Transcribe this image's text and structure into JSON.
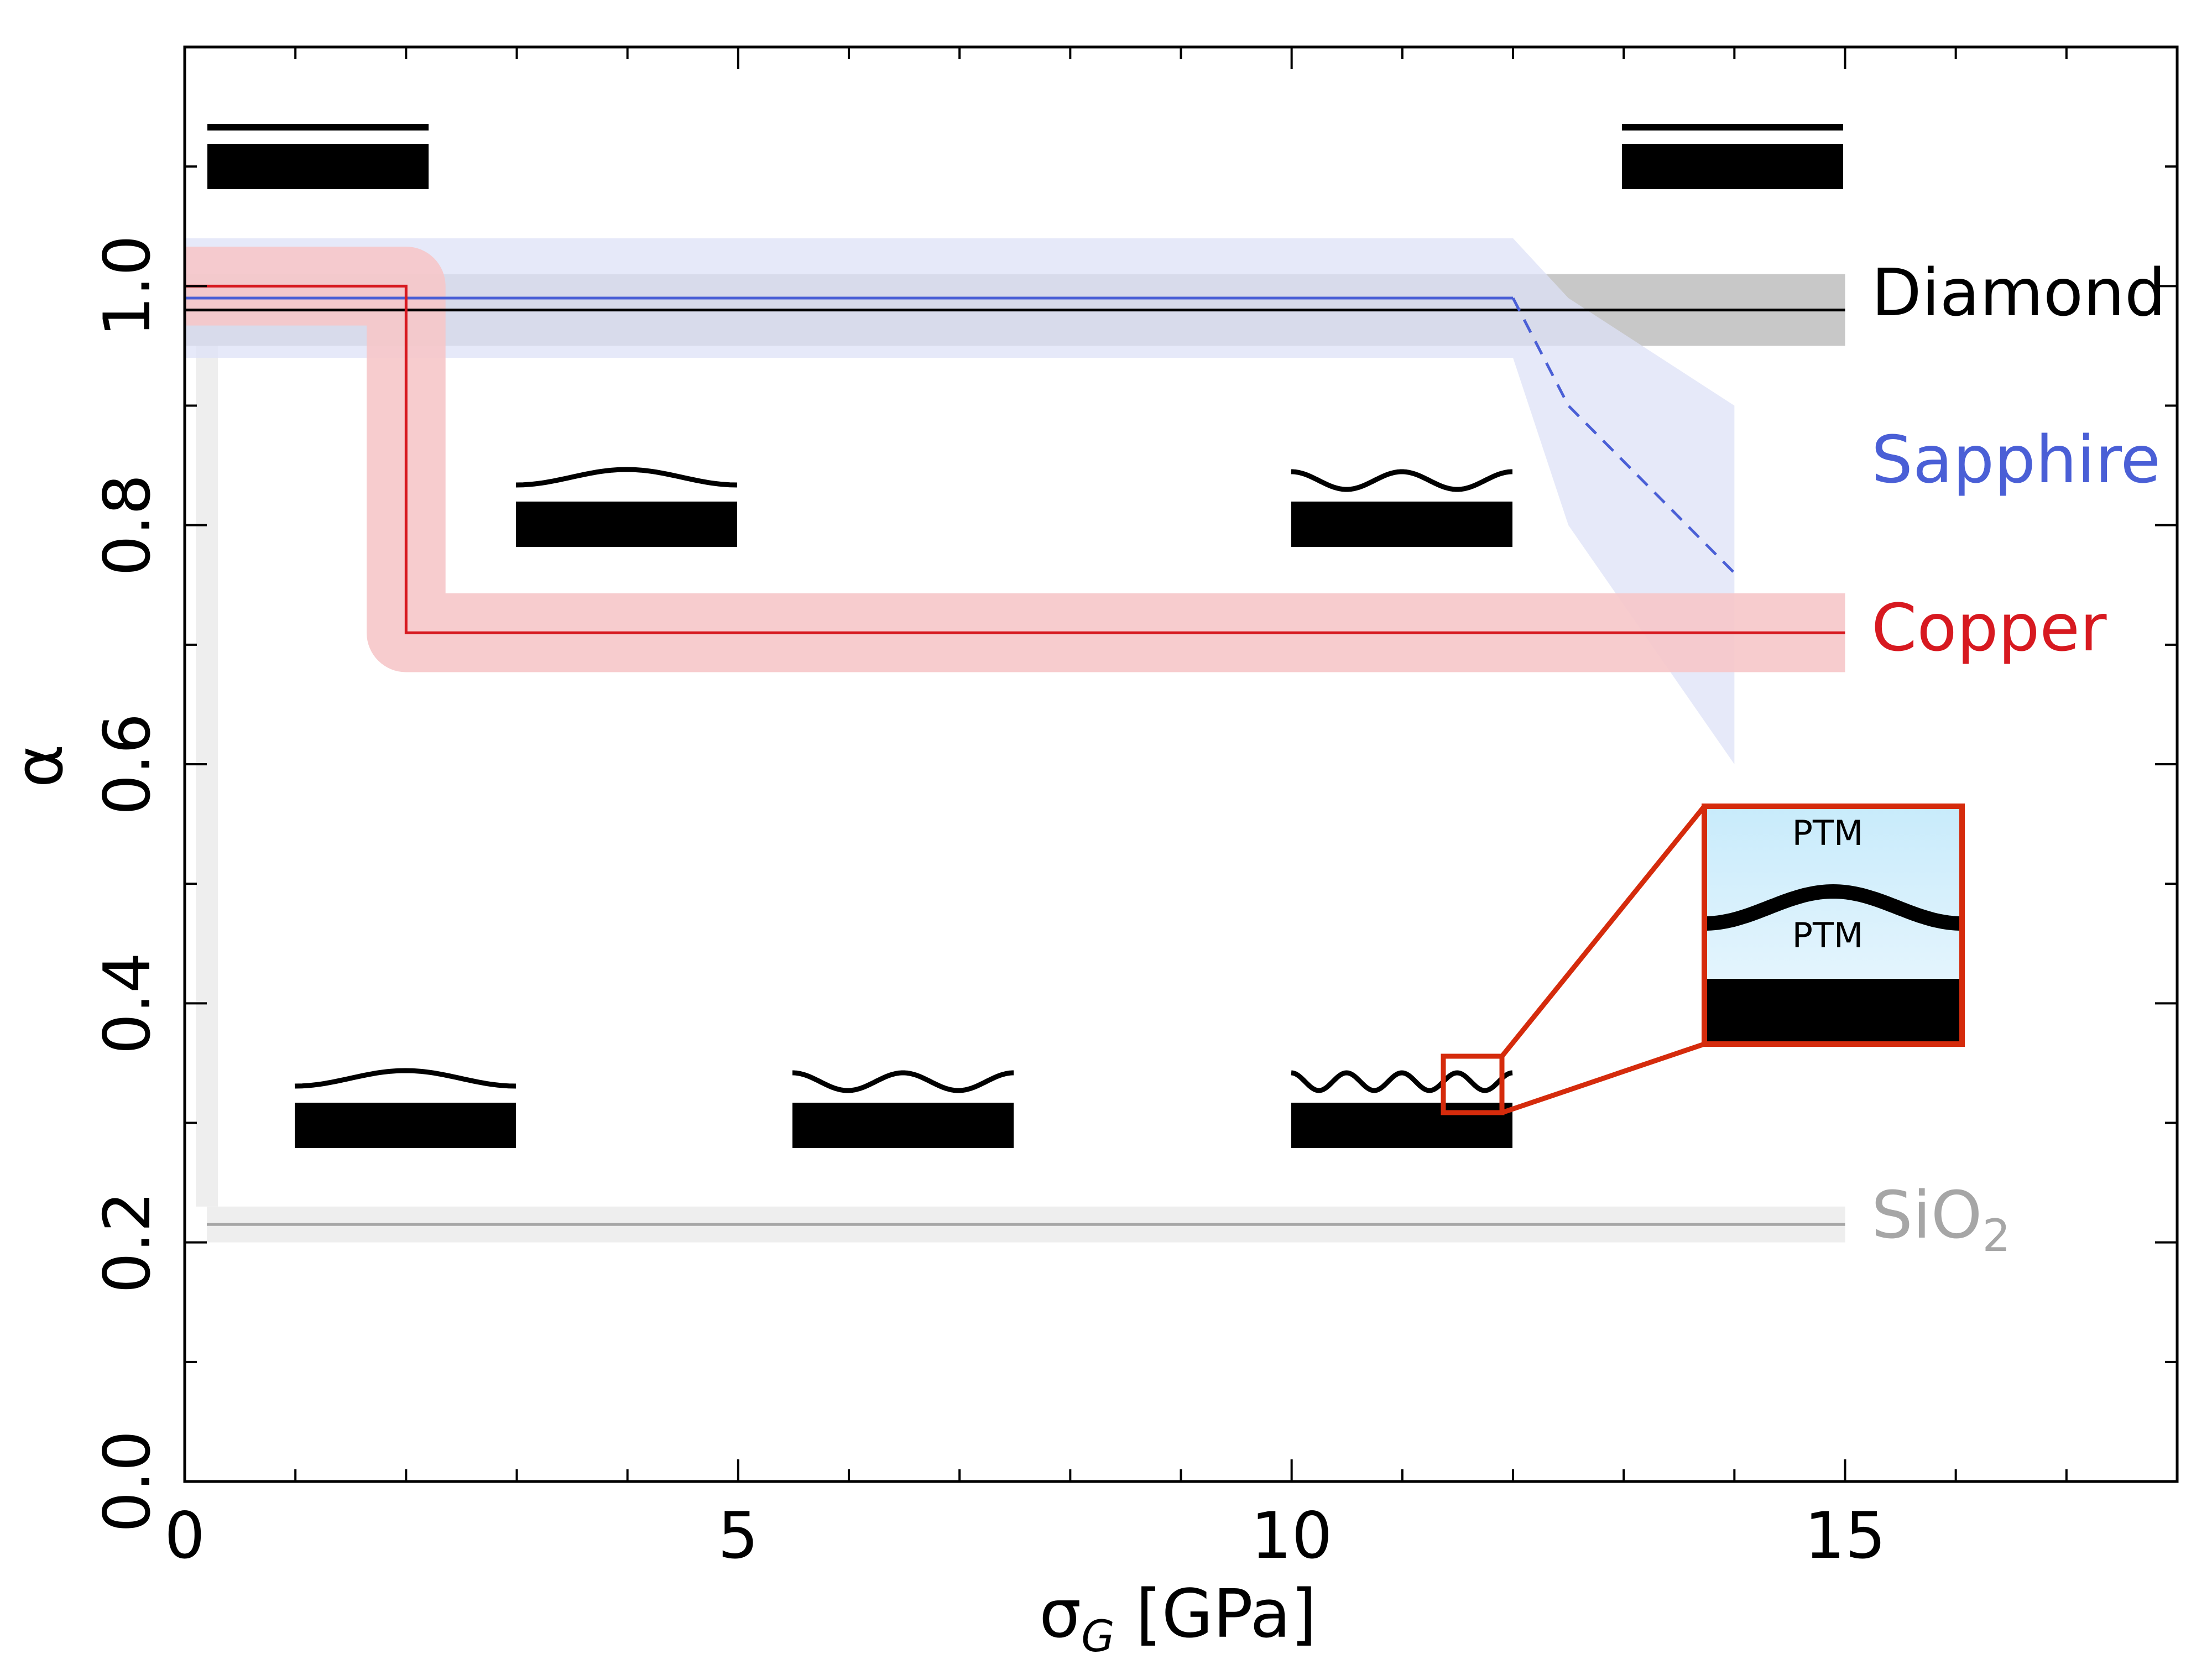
{
  "chart_data": {
    "type": "line",
    "xlabel": "σ_G [GPa]",
    "ylabel": "α",
    "xlim": [
      0,
      18
    ],
    "ylim": [
      0,
      1.2
    ],
    "x_ticks": [
      0,
      5,
      10,
      15
    ],
    "x_tick_labels": [
      "0",
      "5",
      "10",
      "15"
    ],
    "y_ticks": [
      0.0,
      0.2,
      0.4,
      0.6,
      0.8,
      1.0
    ],
    "y_tick_labels": [
      "0.0",
      "0.2",
      "0.4",
      "0.6",
      "0.8",
      "1.0"
    ],
    "grid": false,
    "colors": {
      "diamond": "#000000",
      "sapphire": "#4a5fd6",
      "copper": "#d71920",
      "sio2": "#a6a6a6",
      "diamond_band": "#c8c8c8",
      "sapphire_band": "#dde1f7",
      "copper_band": "#f6c7c9",
      "sio2_band": "#eeeeee",
      "inset_frame": "#d52b0c",
      "inset_fill_top": "#c8ebfb",
      "inset_fill_bottom": "#eef8fe"
    },
    "series": [
      {
        "name": "Diamond",
        "label_parts": [
          "Diamond"
        ],
        "x": [
          0,
          15
        ],
        "y": [
          0.98,
          0.98
        ],
        "band": {
          "lower": 0.95,
          "upper": 1.01
        }
      },
      {
        "name": "Sapphire",
        "label_parts": [
          "Sapphire"
        ],
        "x": [
          0,
          12
        ],
        "y": [
          0.99,
          0.99
        ],
        "dashed": {
          "x": [
            12,
            12.5,
            14
          ],
          "y": [
            0.99,
            0.9,
            0.76
          ]
        },
        "band": {
          "x": [
            0,
            12,
            12.5,
            14
          ],
          "upper": [
            1.04,
            1.04,
            0.99,
            0.9
          ],
          "lower": [
            0.94,
            0.94,
            0.8,
            0.6
          ]
        }
      },
      {
        "name": "Copper",
        "label_parts": [
          "Copper"
        ],
        "x": [
          0,
          2,
          2,
          15
        ],
        "y": [
          1.0,
          1.0,
          0.71,
          0.71
        ],
        "band_halfwidth": 0.033
      },
      {
        "name": "SiO2",
        "label_parts": [
          "SiO",
          "2"
        ],
        "x": [
          0.2,
          15
        ],
        "y": [
          0.215,
          0.215
        ],
        "band": {
          "lower": 0.2,
          "upper": 0.23
        },
        "left_band": {
          "x": [
            0.2,
            0.2
          ],
          "y_from": 0.23,
          "y_to": 0.97
        }
      }
    ],
    "inset_labels": {
      "top": "PTM",
      "bottom": "PTM"
    }
  }
}
